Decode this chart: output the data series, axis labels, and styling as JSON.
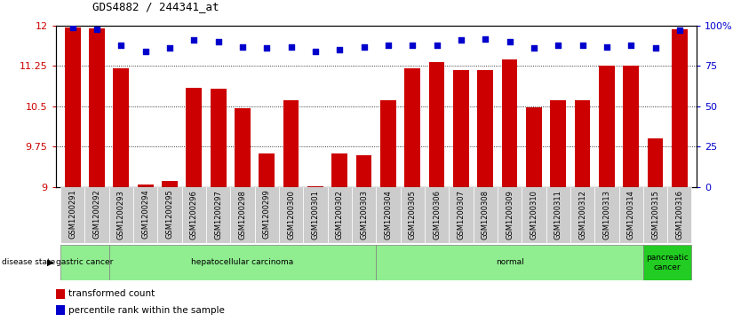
{
  "title": "GDS4882 / 244341_at",
  "samples": [
    "GSM1200291",
    "GSM1200292",
    "GSM1200293",
    "GSM1200294",
    "GSM1200295",
    "GSM1200296",
    "GSM1200297",
    "GSM1200298",
    "GSM1200299",
    "GSM1200300",
    "GSM1200301",
    "GSM1200302",
    "GSM1200303",
    "GSM1200304",
    "GSM1200305",
    "GSM1200306",
    "GSM1200307",
    "GSM1200308",
    "GSM1200309",
    "GSM1200310",
    "GSM1200311",
    "GSM1200312",
    "GSM1200313",
    "GSM1200314",
    "GSM1200315",
    "GSM1200316"
  ],
  "bar_values": [
    11.97,
    11.95,
    11.2,
    9.05,
    9.1,
    10.85,
    10.82,
    10.47,
    9.62,
    10.62,
    9.01,
    9.62,
    9.58,
    10.62,
    11.2,
    11.32,
    11.18,
    11.17,
    11.38,
    10.48,
    10.62,
    10.62,
    11.25,
    11.25,
    9.9,
    11.93
  ],
  "percentile_values": [
    99,
    98,
    88,
    84,
    86,
    91,
    90,
    87,
    86,
    87,
    84,
    85,
    87,
    88,
    88,
    88,
    91,
    92,
    90,
    86,
    88,
    88,
    87,
    88,
    86,
    97
  ],
  "disease_groups": [
    {
      "label": "gastric cancer",
      "start": 0,
      "end": 2,
      "color": "#90ee90"
    },
    {
      "label": "hepatocellular carcinoma",
      "start": 2,
      "end": 13,
      "color": "#90ee90"
    },
    {
      "label": "normal",
      "start": 13,
      "end": 24,
      "color": "#90ee90"
    },
    {
      "label": "pancreatic\ncancer",
      "start": 24,
      "end": 26,
      "color": "#22cc22"
    }
  ],
  "ylim_left": [
    9.0,
    12.0
  ],
  "ylim_right": [
    0,
    100
  ],
  "yticks_left": [
    9.0,
    9.75,
    10.5,
    11.25,
    12.0
  ],
  "ytick_labels_left": [
    "9",
    "9.75",
    "10.5",
    "11.25",
    "12"
  ],
  "yticks_right": [
    0,
    25,
    50,
    75,
    100
  ],
  "ytick_labels_right": [
    "0",
    "25",
    "50",
    "75",
    "100%"
  ],
  "bar_color": "#cc0000",
  "dot_color": "#0000cc",
  "bg_color": "#ffffff",
  "tick_label_color_left": "#cc0000",
  "tick_label_color_right": "#0000cc",
  "xtick_bg_color": "#cccccc",
  "legend_items": [
    {
      "label": "transformed count",
      "color": "#cc0000"
    },
    {
      "label": "percentile rank within the sample",
      "color": "#0000cc"
    }
  ]
}
